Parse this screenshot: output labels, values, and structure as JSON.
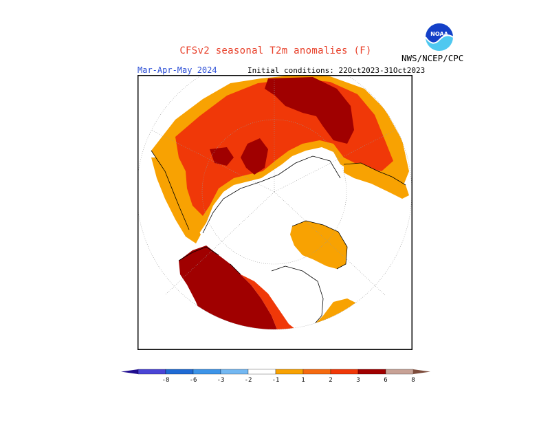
{
  "header": {
    "title": "CFSv2 seasonal T2m anomalies (F)",
    "season": "Mar-Apr-May 2024",
    "initial_conditions": "Initial conditions: 22Oct2023-31Oct2023",
    "agency": "NWS/NCEP/CPC",
    "logo_text": "NOAA"
  },
  "colors": {
    "title": "#e8402a",
    "season": "#2d4fd6",
    "ocean": "#ffffff",
    "frame": "#000000"
  },
  "legend": {
    "labels": [
      "-8",
      "-6",
      "-3",
      "-2",
      "-1",
      "1",
      "2",
      "3",
      "6",
      "8"
    ],
    "colors": [
      "#1f0c8f",
      "#4a45d6",
      "#1f6ad4",
      "#3d94e8",
      "#73b8f2",
      "#ffffff",
      "#f8a202",
      "#f56a10",
      "#f03808",
      "#a00000",
      "#c8a296",
      "#7d4c3c"
    ]
  }
}
